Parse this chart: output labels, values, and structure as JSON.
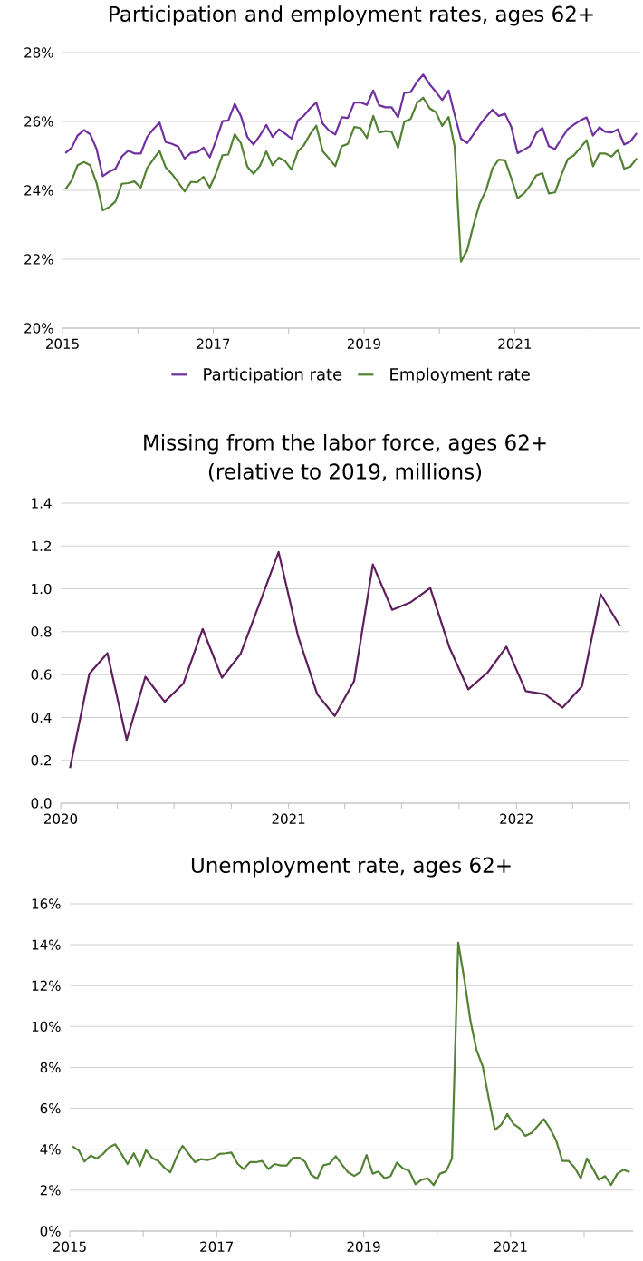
{
  "chart_data": [
    {
      "type": "line",
      "title": "Participation and employment rates, ages 62+",
      "x": [
        "2015-01-15",
        "2015-02-15",
        "2015-03-15",
        "2015-04-15",
        "2015-05-15",
        "2015-06-15",
        "2015-07-15",
        "2015-08-15",
        "2015-09-15",
        "2015-10-15",
        "2015-11-15",
        "2015-12-15",
        "2016-01-15",
        "2016-02-15",
        "2016-03-15",
        "2016-04-15",
        "2016-05-15",
        "2016-06-15",
        "2016-07-15",
        "2016-08-15",
        "2016-09-15",
        "2016-10-15",
        "2016-11-15",
        "2016-12-15",
        "2017-01-15",
        "2017-02-15",
        "2017-03-15",
        "2017-04-15",
        "2017-05-15",
        "2017-06-15",
        "2017-07-15",
        "2017-08-15",
        "2017-09-15",
        "2017-10-15",
        "2017-11-15",
        "2017-12-15",
        "2018-01-15",
        "2018-02-15",
        "2018-03-15",
        "2018-04-15",
        "2018-05-15",
        "2018-06-15",
        "2018-07-15",
        "2018-08-15",
        "2018-09-15",
        "2018-10-15",
        "2018-11-15",
        "2018-12-15",
        "2019-01-15",
        "2019-02-15",
        "2019-03-15",
        "2019-04-15",
        "2019-05-15",
        "2019-06-15",
        "2019-07-15",
        "2019-08-15",
        "2019-09-15",
        "2019-10-15",
        "2019-11-15",
        "2019-12-15",
        "2020-01-15",
        "2020-02-15",
        "2020-03-15",
        "2020-04-15",
        "2020-05-15",
        "2020-06-15",
        "2020-07-15",
        "2020-08-15",
        "2020-09-15",
        "2020-10-15",
        "2020-11-15",
        "2020-12-15",
        "2021-01-15",
        "2021-02-15",
        "2021-03-15",
        "2021-04-15",
        "2021-05-15",
        "2021-06-15",
        "2021-07-15",
        "2021-08-15",
        "2021-09-15",
        "2021-10-15",
        "2021-11-15",
        "2021-12-15",
        "2022-01-15",
        "2022-02-15",
        "2022-03-15",
        "2022-04-15",
        "2022-05-15",
        "2022-06-15",
        "2022-07-15",
        "2022-08-15"
      ],
      "series": [
        {
          "name": "Participation rate",
          "color": "#7030a0",
          "values": [
            25.08,
            25.24,
            25.59,
            25.75,
            25.63,
            25.2,
            24.41,
            24.54,
            24.63,
            24.98,
            25.15,
            25.07,
            25.07,
            25.55,
            25.77,
            25.97,
            25.4,
            25.35,
            25.27,
            24.92,
            25.09,
            25.11,
            25.24,
            24.96,
            25.46,
            26.01,
            26.03,
            26.51,
            26.16,
            25.55,
            25.33,
            25.59,
            25.9,
            25.55,
            25.77,
            25.65,
            25.5,
            26.03,
            26.16,
            26.38,
            26.55,
            25.94,
            25.74,
            25.62,
            26.12,
            26.1,
            26.55,
            26.55,
            26.48,
            26.9,
            26.47,
            26.41,
            26.41,
            26.12,
            26.83,
            26.85,
            27.15,
            27.36,
            27.08,
            26.86,
            26.62,
            26.9,
            26.2,
            25.5,
            25.37,
            25.63,
            25.9,
            26.13,
            26.34,
            26.16,
            26.22,
            25.85,
            25.08,
            25.18,
            25.28,
            25.66,
            25.81,
            25.28,
            25.2,
            25.5,
            25.78,
            25.91,
            26.03,
            26.12,
            25.59,
            25.83,
            25.7,
            25.68,
            25.77,
            25.33,
            25.42,
            25.66
          ]
        },
        {
          "name": "Employment rate",
          "color": "#548235",
          "values": [
            24.03,
            24.29,
            24.73,
            24.82,
            24.73,
            24.21,
            23.42,
            23.51,
            23.68,
            24.19,
            24.21,
            24.26,
            24.08,
            24.65,
            24.89,
            25.15,
            24.67,
            24.47,
            24.23,
            23.97,
            24.25,
            24.23,
            24.39,
            24.08,
            24.5,
            25.02,
            25.04,
            25.63,
            25.37,
            24.69,
            24.48,
            24.71,
            25.13,
            24.73,
            24.95,
            24.85,
            24.6,
            25.13,
            25.3,
            25.63,
            25.88,
            25.14,
            24.93,
            24.7,
            25.28,
            25.35,
            25.84,
            25.81,
            25.52,
            26.16,
            25.68,
            25.72,
            25.7,
            25.24,
            25.99,
            26.07,
            26.54,
            26.69,
            26.38,
            26.27,
            25.87,
            26.13,
            25.28,
            21.93,
            22.26,
            23.0,
            23.62,
            24.01,
            24.64,
            24.89,
            24.87,
            24.36,
            23.77,
            23.91,
            24.13,
            24.43,
            24.5,
            23.91,
            23.94,
            24.45,
            24.91,
            25.02,
            25.24,
            25.46,
            24.7,
            25.07,
            25.07,
            24.98,
            25.18,
            24.63,
            24.69,
            24.93
          ]
        }
      ],
      "xlim": [
        "2015-01-01",
        "2022-09-01"
      ],
      "xticks": [
        {
          "value": "2015-01-01",
          "label": "2015"
        },
        {
          "value": "2016-01-01",
          "label": null
        },
        {
          "value": "2017-01-01",
          "label": "2017"
        },
        {
          "value": "2018-01-01",
          "label": null
        },
        {
          "value": "2019-01-01",
          "label": "2019"
        },
        {
          "value": "2020-01-01",
          "label": null
        },
        {
          "value": "2021-01-01",
          "label": "2021"
        },
        {
          "value": "2022-01-01",
          "label": null
        }
      ],
      "ylim": [
        20,
        28
      ],
      "yticks": [
        {
          "value": 20,
          "label": "20%"
        },
        {
          "value": 22,
          "label": "22%"
        },
        {
          "value": 24,
          "label": "24%"
        },
        {
          "value": 26,
          "label": "26%"
        },
        {
          "value": 28,
          "label": "28%"
        }
      ],
      "grid": "y",
      "legend": "bottom",
      "marker": "none",
      "line_style": "solid"
    },
    {
      "type": "line",
      "title": "Missing from the labor force, ages 62+",
      "subtitle": "(relative to 2019, millions)",
      "x": [
        "2020-01-16",
        "2020-02-16",
        "2020-03-16",
        "2020-04-16",
        "2020-05-16",
        "2020-06-16",
        "2020-07-16",
        "2020-08-16",
        "2020-09-16",
        "2020-10-16",
        "2020-11-16",
        "2020-12-16",
        "2021-01-16",
        "2021-02-16",
        "2021-03-16",
        "2021-04-16",
        "2021-05-16",
        "2021-06-16",
        "2021-07-16",
        "2021-08-16",
        "2021-09-16",
        "2021-10-16",
        "2021-11-16",
        "2021-12-16",
        "2022-01-16",
        "2022-02-16",
        "2022-03-16",
        "2022-04-16",
        "2022-05-16",
        "2022-06-16"
      ],
      "series": [
        {
          "color": "#5e1f5c",
          "values": [
            0.164,
            0.604,
            0.7,
            0.295,
            0.59,
            0.473,
            0.558,
            0.813,
            0.585,
            0.697,
            0.936,
            1.172,
            0.782,
            0.508,
            0.407,
            0.57,
            1.114,
            0.902,
            0.938,
            1.004,
            0.724,
            0.531,
            0.61,
            0.73,
            0.523,
            0.508,
            0.446,
            0.546,
            0.975,
            0.826
          ]
        }
      ],
      "xlim": [
        "2020-01-01",
        "2022-07-01"
      ],
      "xticks": [
        {
          "value": "2020-01-01",
          "label": "2020"
        },
        {
          "value": "2020-04-01",
          "label": null
        },
        {
          "value": "2020-07-01",
          "label": null
        },
        {
          "value": "2020-10-01",
          "label": null
        },
        {
          "value": "2021-01-01",
          "label": "2021"
        },
        {
          "value": "2021-04-01",
          "label": null
        },
        {
          "value": "2021-07-01",
          "label": null
        },
        {
          "value": "2021-10-01",
          "label": null
        },
        {
          "value": "2022-01-01",
          "label": "2022"
        },
        {
          "value": "2022-04-01",
          "label": null
        },
        {
          "value": "2022-07-01",
          "label": null
        }
      ],
      "ylim": [
        0,
        1.4
      ],
      "yticks": [
        {
          "value": 0,
          "label": "0.0"
        },
        {
          "value": 0.2,
          "label": "0.2"
        },
        {
          "value": 0.4,
          "label": "0.4"
        },
        {
          "value": 0.6,
          "label": "0.6"
        },
        {
          "value": 0.8,
          "label": "0.8"
        },
        {
          "value": 1,
          "label": "1.0"
        },
        {
          "value": 1.2,
          "label": "1.2"
        },
        {
          "value": 1.4,
          "label": "1.4"
        }
      ],
      "grid": "y",
      "marker": "none",
      "line_style": "solid"
    },
    {
      "type": "line",
      "title": "Unemployment rate, ages 62+",
      "x": [
        "2015-01-15",
        "2015-02-15",
        "2015-03-15",
        "2015-04-15",
        "2015-05-15",
        "2015-06-15",
        "2015-07-15",
        "2015-08-15",
        "2015-09-15",
        "2015-10-15",
        "2015-11-15",
        "2015-12-15",
        "2016-01-15",
        "2016-02-15",
        "2016-03-15",
        "2016-04-15",
        "2016-05-15",
        "2016-06-15",
        "2016-07-15",
        "2016-08-15",
        "2016-09-15",
        "2016-10-15",
        "2016-11-15",
        "2016-12-15",
        "2017-01-15",
        "2017-02-15",
        "2017-03-15",
        "2017-04-15",
        "2017-05-15",
        "2017-06-15",
        "2017-07-15",
        "2017-08-15",
        "2017-09-15",
        "2017-10-15",
        "2017-11-15",
        "2017-12-15",
        "2018-01-15",
        "2018-02-15",
        "2018-03-15",
        "2018-04-15",
        "2018-05-15",
        "2018-06-15",
        "2018-07-15",
        "2018-08-15",
        "2018-09-15",
        "2018-10-15",
        "2018-11-15",
        "2018-12-15",
        "2019-01-15",
        "2019-02-15",
        "2019-03-15",
        "2019-04-15",
        "2019-05-15",
        "2019-06-15",
        "2019-07-15",
        "2019-08-15",
        "2019-09-15",
        "2019-10-15",
        "2019-11-15",
        "2019-12-15",
        "2020-01-15",
        "2020-02-15",
        "2020-03-15",
        "2020-04-15",
        "2020-05-15",
        "2020-06-15",
        "2020-07-15",
        "2020-08-15",
        "2020-09-15",
        "2020-10-15",
        "2020-11-15",
        "2020-12-15",
        "2021-01-15",
        "2021-02-15",
        "2021-03-15",
        "2021-04-15",
        "2021-05-15",
        "2021-06-15",
        "2021-07-15",
        "2021-08-15",
        "2021-09-15",
        "2021-10-15",
        "2021-11-15",
        "2021-12-15",
        "2022-01-15",
        "2022-02-15",
        "2022-03-15",
        "2022-04-15",
        "2022-05-15",
        "2022-06-15",
        "2022-07-15",
        "2022-08-15"
      ],
      "series": [
        {
          "color": "#548235",
          "values": [
            4.14,
            3.94,
            3.4,
            3.69,
            3.55,
            3.77,
            4.09,
            4.24,
            3.77,
            3.28,
            3.8,
            3.18,
            3.96,
            3.57,
            3.44,
            3.1,
            2.88,
            3.62,
            4.17,
            3.77,
            3.37,
            3.52,
            3.47,
            3.55,
            3.77,
            3.8,
            3.84,
            3.29,
            3.03,
            3.37,
            3.37,
            3.43,
            3.03,
            3.28,
            3.21,
            3.21,
            3.59,
            3.59,
            3.4,
            2.76,
            2.56,
            3.22,
            3.29,
            3.66,
            3.25,
            2.88,
            2.7,
            2.88,
            3.72,
            2.81,
            2.91,
            2.58,
            2.69,
            3.35,
            3.07,
            2.95,
            2.29,
            2.51,
            2.58,
            2.25,
            2.81,
            2.92,
            3.55,
            14.1,
            12.33,
            10.27,
            8.86,
            8.05,
            6.43,
            4.95,
            5.2,
            5.72,
            5.24,
            5.02,
            4.65,
            4.8,
            5.13,
            5.47,
            5.02,
            4.43,
            3.43,
            3.43,
            3.1,
            2.58,
            3.55,
            3.03,
            2.51,
            2.69,
            2.26,
            2.81,
            3.0,
            2.88
          ]
        }
      ],
      "xlim": [
        "2015-01-01",
        "2022-09-01"
      ],
      "xticks": [
        {
          "value": "2015-01-01",
          "label": "2015"
        },
        {
          "value": "2016-01-01",
          "label": null
        },
        {
          "value": "2017-01-01",
          "label": "2017"
        },
        {
          "value": "2018-01-01",
          "label": null
        },
        {
          "value": "2019-01-01",
          "label": "2019"
        },
        {
          "value": "2020-01-01",
          "label": null
        },
        {
          "value": "2021-01-01",
          "label": "2021"
        },
        {
          "value": "2022-01-01",
          "label": null
        }
      ],
      "ylim": [
        0,
        16
      ],
      "yticks": [
        {
          "value": 0,
          "label": "0%"
        },
        {
          "value": 2,
          "label": "2%"
        },
        {
          "value": 4,
          "label": "4%"
        },
        {
          "value": 6,
          "label": "6%"
        },
        {
          "value": 8,
          "label": "8%"
        },
        {
          "value": 10,
          "label": "10%"
        },
        {
          "value": 12,
          "label": "12%"
        },
        {
          "value": 14,
          "label": "14%"
        },
        {
          "value": 16,
          "label": "16%"
        }
      ],
      "grid": "y",
      "marker": "none",
      "line_style": "solid"
    }
  ]
}
